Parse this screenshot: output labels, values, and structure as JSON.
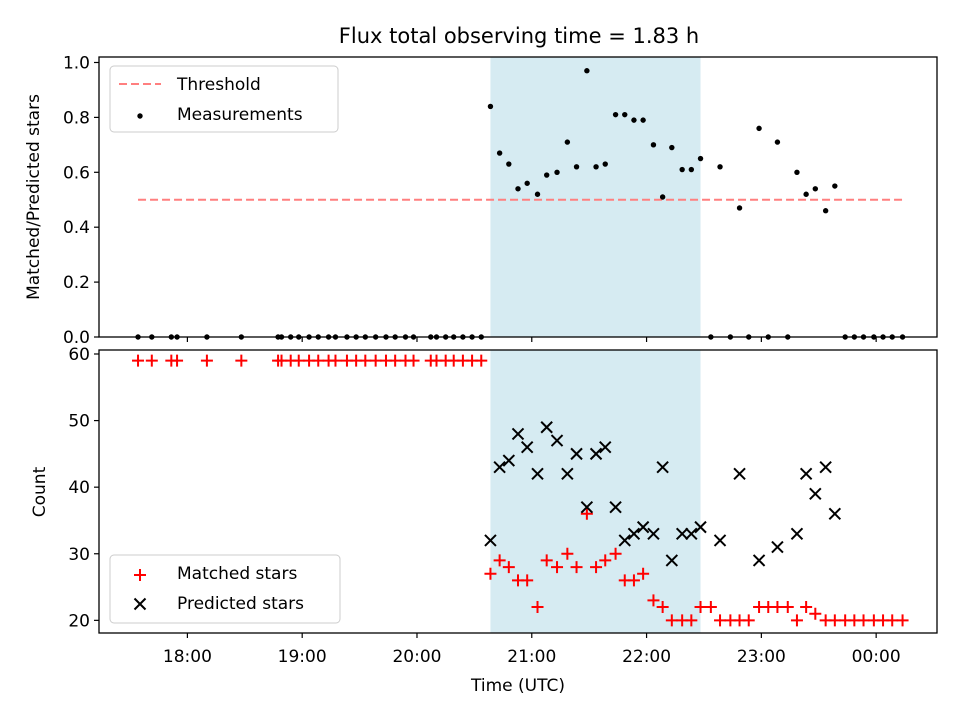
{
  "figure_title": "Flux total observing time = 1.83 h",
  "x_tick_labels": [
    "18:00",
    "19:00",
    "20:00",
    "21:00",
    "22:00",
    "23:00",
    "00:00"
  ],
  "xlabel": "Time (UTC)",
  "colors": {
    "shade": "#add8e6",
    "threshold": "#ff7f7f",
    "measurements": "#000000",
    "matched": "#ff0000",
    "predicted": "#000000"
  },
  "chart_data": [
    {
      "type": "scatter",
      "ylabel": "Matched/Predicted stars",
      "ylim": [
        0,
        1.02
      ],
      "y_ticks": [
        "0.0",
        "0.2",
        "0.4",
        "0.6",
        "0.8",
        "1.0"
      ],
      "xlim_hours": [
        17.23,
        24.53
      ],
      "x_ticks_hours": [
        18,
        19,
        20,
        21,
        22,
        23,
        24
      ],
      "shaded_interval_hours": [
        20.64,
        22.47
      ],
      "legend": {
        "location": "upper left",
        "entries": [
          "Threshold",
          "Measurements"
        ]
      },
      "threshold": {
        "name": "Threshold",
        "value": 0.5,
        "x_range_hours": [
          17.57,
          24.24
        ]
      },
      "measurements": {
        "name": "Measurements",
        "x_hours": [
          17.57,
          17.69,
          17.86,
          17.91,
          18.17,
          18.47,
          18.79,
          18.82,
          18.9,
          18.97,
          19.06,
          19.14,
          19.23,
          19.29,
          19.39,
          19.47,
          19.55,
          19.64,
          19.73,
          19.81,
          19.9,
          19.97,
          20.12,
          20.17,
          20.25,
          20.32,
          20.4,
          20.48,
          20.56,
          20.64,
          20.72,
          20.8,
          20.88,
          20.96,
          21.05,
          21.13,
          21.22,
          21.31,
          21.39,
          21.48,
          21.56,
          21.64,
          21.73,
          21.81,
          21.89,
          21.97,
          22.06,
          22.14,
          22.22,
          22.31,
          22.39,
          22.47,
          22.56,
          22.64,
          22.73,
          22.81,
          22.89,
          22.98,
          23.06,
          23.14,
          23.23,
          23.31,
          23.39,
          23.47,
          23.56,
          23.64,
          23.73,
          23.81,
          23.89,
          23.98,
          24.06,
          24.14,
          24.23
        ],
        "y": [
          0,
          0,
          0,
          0,
          0,
          0,
          0,
          0,
          0,
          0,
          0,
          0,
          0,
          0,
          0,
          0,
          0,
          0,
          0,
          0,
          0,
          0,
          0,
          0,
          0,
          0,
          0,
          0,
          0,
          0.84,
          0.67,
          0.63,
          0.54,
          0.56,
          0.52,
          0.59,
          0.6,
          0.71,
          0.62,
          0.97,
          0.62,
          0.63,
          0.81,
          0.81,
          0.79,
          0.79,
          0.7,
          0.51,
          0.69,
          0.61,
          0.61,
          0.65,
          0,
          0.62,
          0,
          0.47,
          0,
          0.76,
          0,
          0.71,
          0,
          0.6,
          0.52,
          0.54,
          0.46,
          0.55,
          0,
          0,
          0,
          0,
          0,
          0,
          0
        ]
      }
    },
    {
      "type": "scatter",
      "ylabel": "Count",
      "ylim": [
        18.1,
        60.6
      ],
      "y_ticks": [
        "20",
        "30",
        "40",
        "50",
        "60"
      ],
      "legend": {
        "location": "lower left",
        "entries": [
          "Matched stars",
          "Predicted stars"
        ]
      },
      "series": [
        {
          "name": "Matched stars",
          "marker": "plus",
          "x_hours": [
            17.57,
            17.69,
            17.86,
            17.91,
            18.17,
            18.47,
            18.79,
            18.82,
            18.9,
            18.97,
            19.06,
            19.14,
            19.23,
            19.29,
            19.39,
            19.47,
            19.55,
            19.64,
            19.73,
            19.81,
            19.9,
            19.97,
            20.12,
            20.17,
            20.25,
            20.32,
            20.4,
            20.48,
            20.56,
            20.64,
            20.72,
            20.8,
            20.88,
            20.96,
            21.05,
            21.13,
            21.22,
            21.31,
            21.39,
            21.48,
            21.56,
            21.64,
            21.73,
            21.81,
            21.89,
            21.97,
            22.06,
            22.14,
            22.22,
            22.31,
            22.39,
            22.47,
            22.56,
            22.64,
            22.73,
            22.81,
            22.89,
            22.98,
            23.06,
            23.14,
            23.23,
            23.31,
            23.39,
            23.47,
            23.56,
            23.64,
            23.73,
            23.81,
            23.89,
            23.98,
            24.06,
            24.14,
            24.23
          ],
          "y": [
            59,
            59,
            59,
            59,
            59,
            59,
            59,
            59,
            59,
            59,
            59,
            59,
            59,
            59,
            59,
            59,
            59,
            59,
            59,
            59,
            59,
            59,
            59,
            59,
            59,
            59,
            59,
            59,
            59,
            27,
            29,
            28,
            26,
            26,
            22,
            29,
            28,
            30,
            28,
            36,
            28,
            29,
            30,
            26,
            26,
            27,
            23,
            22,
            20,
            20,
            20,
            22,
            22,
            20,
            20,
            20,
            20,
            22,
            22,
            22,
            22,
            20,
            22,
            21,
            20,
            20,
            20,
            20,
            20,
            20,
            20,
            20,
            20
          ]
        },
        {
          "name": "Predicted stars",
          "marker": "x",
          "x_hours": [
            20.64,
            20.72,
            20.8,
            20.88,
            20.96,
            21.05,
            21.13,
            21.22,
            21.31,
            21.39,
            21.48,
            21.56,
            21.64,
            21.73,
            21.81,
            21.89,
            21.97,
            22.06,
            22.14,
            22.22,
            22.31,
            22.39,
            22.47,
            22.64,
            22.81,
            22.98,
            23.14,
            23.31,
            23.39,
            23.47,
            23.56,
            23.64
          ],
          "y": [
            32,
            43,
            44,
            48,
            46,
            42,
            49,
            47,
            42,
            45,
            37,
            45,
            46,
            37,
            32,
            33,
            34,
            33,
            43,
            29,
            33,
            33,
            34,
            32,
            42,
            29,
            31,
            33,
            42,
            39,
            43,
            36
          ]
        }
      ]
    }
  ]
}
